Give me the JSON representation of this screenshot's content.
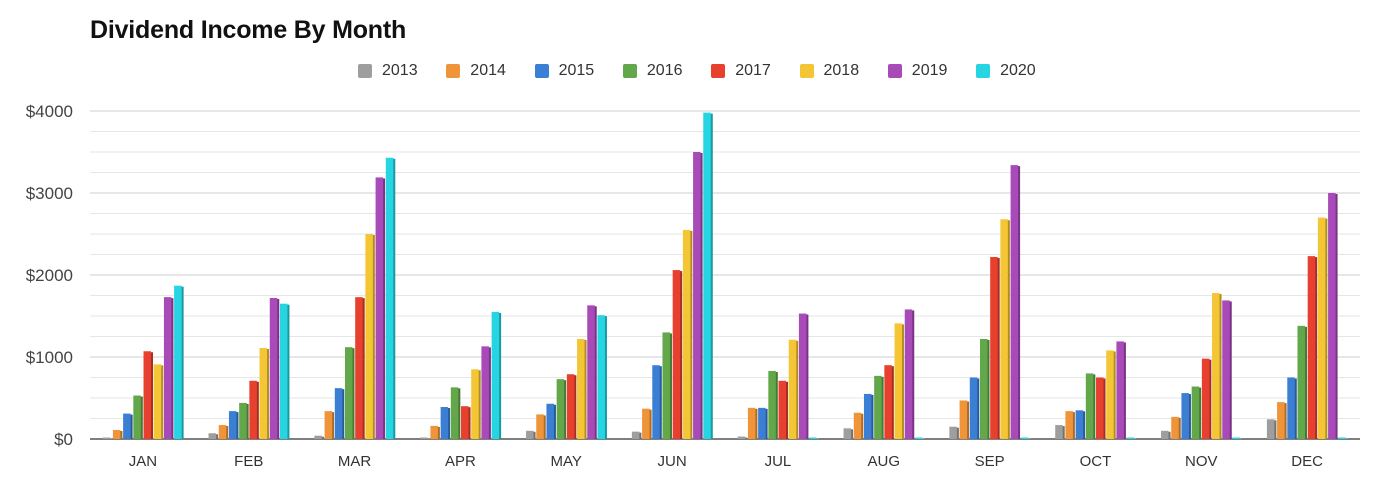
{
  "chart_data": {
    "type": "bar",
    "title": "Dividend Income By Month",
    "xlabel": "",
    "ylabel": "",
    "ylim": [
      0,
      4000
    ],
    "yticks": [
      0,
      1000,
      2000,
      3000,
      4000
    ],
    "ytick_labels": [
      "$0",
      "$1000",
      "$2000",
      "$3000",
      "$4000"
    ],
    "grid": true,
    "legend_position": "top",
    "categories": [
      "JAN",
      "FEB",
      "MAR",
      "APR",
      "MAY",
      "JUN",
      "JUL",
      "AUG",
      "SEP",
      "OCT",
      "NOV",
      "DEC"
    ],
    "series": [
      {
        "name": "2013",
        "color": "#9e9e9e",
        "values": [
          5,
          70,
          40,
          5,
          100,
          90,
          30,
          130,
          150,
          170,
          100,
          240
        ]
      },
      {
        "name": "2014",
        "color": "#f0943a",
        "values": [
          110,
          170,
          340,
          160,
          300,
          370,
          380,
          320,
          470,
          340,
          270,
          450
        ]
      },
      {
        "name": "2015",
        "color": "#3b7fd4",
        "values": [
          310,
          340,
          620,
          390,
          430,
          900,
          380,
          550,
          750,
          350,
          560,
          750
        ]
      },
      {
        "name": "2016",
        "color": "#62a84a",
        "values": [
          530,
          440,
          1120,
          630,
          730,
          1300,
          830,
          770,
          1220,
          800,
          640,
          1380
        ]
      },
      {
        "name": "2017",
        "color": "#e8402f",
        "values": [
          1070,
          710,
          1730,
          400,
          790,
          2060,
          710,
          900,
          2220,
          750,
          980,
          2230
        ]
      },
      {
        "name": "2018",
        "color": "#f4c534",
        "values": [
          910,
          1110,
          2500,
          850,
          1220,
          2550,
          1210,
          1410,
          2680,
          1080,
          1780,
          2700
        ]
      },
      {
        "name": "2019",
        "color": "#a84ab8",
        "values": [
          1730,
          1720,
          3190,
          1130,
          1630,
          3500,
          1530,
          1580,
          3340,
          1190,
          1690,
          3000
        ]
      },
      {
        "name": "2020",
        "color": "#26d4e2",
        "values": [
          1870,
          1650,
          3430,
          1550,
          1510,
          3980,
          0,
          0,
          0,
          0,
          0,
          0
        ]
      }
    ]
  }
}
